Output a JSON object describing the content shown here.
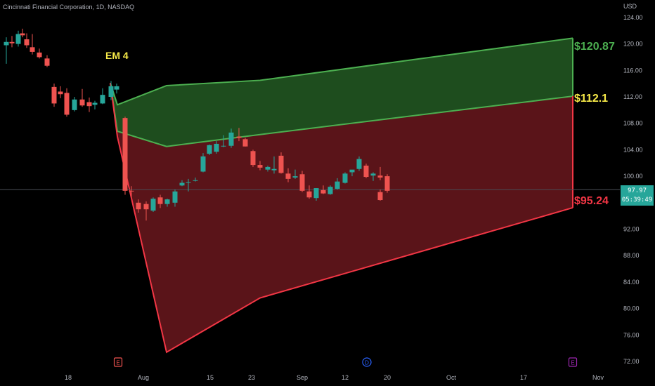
{
  "header": {
    "title": "Cincinnati Financial Corporation, 1D, NASDAQ"
  },
  "price_axis": {
    "unit": "USD"
  },
  "last_price": {
    "value": "97.97",
    "countdown": "05:39:49"
  },
  "annotations": {
    "em_label": "EM 4",
    "upper_label": "$120.87",
    "middle_label": "$112.1",
    "lower_label": "$95.24"
  },
  "colors": {
    "background": "#000000",
    "up_candle": "#26a69a",
    "down_candle": "#ef5350",
    "green_band_fill": "#1e4d1e",
    "red_band_fill": "#5a1419",
    "green_line": "#4caf50",
    "red_line": "#f23645",
    "label_yellow": "#f6e948"
  },
  "chart_data": {
    "type": "candlestick",
    "y_ticks": [
      72,
      76,
      80,
      84,
      88,
      92,
      96,
      100,
      104,
      108,
      112,
      116,
      120,
      124
    ],
    "y_tick_labels": [
      "72.00",
      "76.00",
      "80.00",
      "84.00",
      "88.00",
      "92.00",
      "96.00",
      "100.00",
      "104.00",
      "108.00",
      "112.00",
      "116.00",
      "120.00",
      "124.00"
    ],
    "ylim": [
      71,
      126
    ],
    "x_tick_labels": [
      "18",
      "Aug",
      "15",
      "23",
      "Sep",
      "12",
      "20",
      "Oct",
      "17",
      "Nov"
    ],
    "event_markers": [
      "E",
      "D",
      "E"
    ],
    "grid": false,
    "last_price_line": 97.97,
    "candles": [
      {
        "date": "Jul 11",
        "o": 119.8,
        "h": 121.0,
        "l": 117.0,
        "c": 120.3
      },
      {
        "date": "Jul 12",
        "o": 120.3,
        "h": 121.2,
        "l": 119.5,
        "c": 120.1
      },
      {
        "date": "Jul 13",
        "o": 120.0,
        "h": 122.0,
        "l": 119.6,
        "c": 121.5
      },
      {
        "date": "Jul 14",
        "o": 121.6,
        "h": 122.3,
        "l": 121.0,
        "c": 121.3
      },
      {
        "date": "Jul 15",
        "o": 120.7,
        "h": 121.6,
        "l": 119.4,
        "c": 119.8
      },
      {
        "date": "Jul 18",
        "o": 119.5,
        "h": 121.5,
        "l": 118.4,
        "c": 118.8
      },
      {
        "date": "Jul 19",
        "o": 118.7,
        "h": 119.3,
        "l": 117.8,
        "c": 118.0
      },
      {
        "date": "Jul 20",
        "o": 117.8,
        "h": 118.3,
        "l": 116.5,
        "c": 116.7
      },
      {
        "date": "Jul 21",
        "o": 113.5,
        "h": 114.0,
        "l": 110.5,
        "c": 111.0
      },
      {
        "date": "Jul 22",
        "o": 112.8,
        "h": 113.6,
        "l": 111.8,
        "c": 112.4
      },
      {
        "date": "Jul 25",
        "o": 112.6,
        "h": 113.3,
        "l": 109.0,
        "c": 109.3
      },
      {
        "date": "Jul 26",
        "o": 110.0,
        "h": 112.0,
        "l": 109.8,
        "c": 111.6
      },
      {
        "date": "Jul 27",
        "o": 111.6,
        "h": 113.2,
        "l": 110.5,
        "c": 110.7
      },
      {
        "date": "Jul 28",
        "o": 111.2,
        "h": 111.9,
        "l": 109.7,
        "c": 110.6
      },
      {
        "date": "Jul 29",
        "o": 110.8,
        "h": 111.4,
        "l": 110.1,
        "c": 111.1
      },
      {
        "date": "Aug 1",
        "o": 111.0,
        "h": 113.3,
        "l": 110.9,
        "c": 112.3
      },
      {
        "date": "Aug 2",
        "o": 112.0,
        "h": 114.4,
        "l": 111.5,
        "c": 113.6
      },
      {
        "date": "Aug 3",
        "o": 113.1,
        "h": 114.0,
        "l": 112.5,
        "c": 113.6
      },
      {
        "date": "Aug 4",
        "o": 108.8,
        "h": 109.0,
        "l": 97.2,
        "c": 97.8
      },
      {
        "date": "Aug 5",
        "o": 97.8,
        "h": 98.5,
        "l": 96.8,
        "c": 97.7
      },
      {
        "date": "Aug 8",
        "o": 96.0,
        "h": 96.5,
        "l": 94.5,
        "c": 95.0
      },
      {
        "date": "Aug 9",
        "o": 95.8,
        "h": 96.2,
        "l": 93.3,
        "c": 95.0
      },
      {
        "date": "Aug 10",
        "o": 94.8,
        "h": 96.8,
        "l": 94.6,
        "c": 96.6
      },
      {
        "date": "Aug 11",
        "o": 96.8,
        "h": 97.2,
        "l": 95.2,
        "c": 95.8
      },
      {
        "date": "Aug 12",
        "o": 95.8,
        "h": 96.6,
        "l": 95.4,
        "c": 96.5
      },
      {
        "date": "Aug 15",
        "o": 96.0,
        "h": 98.0,
        "l": 95.4,
        "c": 97.7
      },
      {
        "date": "Aug 16",
        "o": 98.6,
        "h": 99.4,
        "l": 98.5,
        "c": 99.0
      },
      {
        "date": "Aug 17",
        "o": 99.0,
        "h": 99.6,
        "l": 97.7,
        "c": 99.1
      },
      {
        "date": "Aug 18",
        "o": 99.4,
        "h": 99.8,
        "l": 99.2,
        "c": 99.4
      },
      {
        "date": "Aug 19",
        "o": 100.7,
        "h": 103.5,
        "l": 100.6,
        "c": 103.0
      },
      {
        "date": "Aug 22",
        "o": 103.4,
        "h": 104.8,
        "l": 103.2,
        "c": 104.7
      },
      {
        "date": "Aug 23",
        "o": 103.7,
        "h": 105.3,
        "l": 103.4,
        "c": 104.9
      },
      {
        "date": "Aug 24",
        "o": 104.5,
        "h": 106.2,
        "l": 104.4,
        "c": 104.6
      },
      {
        "date": "Aug 25",
        "o": 104.6,
        "h": 107.2,
        "l": 104.3,
        "c": 106.6
      },
      {
        "date": "Aug 26",
        "o": 106.0,
        "h": 107.3,
        "l": 105.3,
        "c": 105.8
      },
      {
        "date": "Aug 29",
        "o": 105.6,
        "h": 105.8,
        "l": 104.5,
        "c": 104.5
      },
      {
        "date": "Aug 30",
        "o": 103.8,
        "h": 104.0,
        "l": 101.4,
        "c": 101.7
      },
      {
        "date": "Aug 31",
        "o": 101.7,
        "h": 102.3,
        "l": 100.9,
        "c": 101.3
      },
      {
        "date": "Sep 1",
        "o": 101.0,
        "h": 101.6,
        "l": 100.7,
        "c": 101.4
      },
      {
        "date": "Sep 2",
        "o": 100.9,
        "h": 103.0,
        "l": 100.4,
        "c": 101.1
      },
      {
        "date": "Sep 6",
        "o": 103.1,
        "h": 103.6,
        "l": 100.4,
        "c": 100.5
      },
      {
        "date": "Sep 7",
        "o": 100.4,
        "h": 101.2,
        "l": 99.1,
        "c": 99.6
      },
      {
        "date": "Sep 8",
        "o": 99.8,
        "h": 101.0,
        "l": 99.6,
        "c": 100.0
      },
      {
        "date": "Sep 9",
        "o": 100.3,
        "h": 100.8,
        "l": 97.6,
        "c": 97.8
      },
      {
        "date": "Sep 12",
        "o": 97.7,
        "h": 98.6,
        "l": 96.6,
        "c": 96.8
      },
      {
        "date": "Sep 13",
        "o": 96.7,
        "h": 98.2,
        "l": 96.3,
        "c": 98.2
      },
      {
        "date": "Sep 14",
        "o": 97.9,
        "h": 98.6,
        "l": 97.3,
        "c": 97.4
      },
      {
        "date": "Sep 15",
        "o": 97.3,
        "h": 98.6,
        "l": 97.2,
        "c": 98.4
      },
      {
        "date": "Sep 16",
        "o": 98.1,
        "h": 99.7,
        "l": 98.0,
        "c": 99.2
      },
      {
        "date": "Sep 19",
        "o": 99.0,
        "h": 100.6,
        "l": 98.9,
        "c": 100.4
      },
      {
        "date": "Sep 20",
        "o": 100.6,
        "h": 100.9,
        "l": 100.0,
        "c": 101.0
      },
      {
        "date": "Sep 21",
        "o": 101.1,
        "h": 103.0,
        "l": 100.8,
        "c": 102.6
      },
      {
        "date": "Sep 22",
        "o": 101.6,
        "h": 101.9,
        "l": 99.7,
        "c": 99.9
      },
      {
        "date": "Sep 23",
        "o": 100.1,
        "h": 100.6,
        "l": 99.3,
        "c": 100.4
      },
      {
        "date": "Sep 26",
        "o": 100.1,
        "h": 101.4,
        "l": 99.4,
        "c": 99.8
      },
      {
        "date": "Sep 27",
        "o": 100.0,
        "h": 100.3,
        "l": 97.5,
        "c": 97.8
      },
      {
        "date": "Sep 28",
        "o": 97.6,
        "h": 98.0,
        "l": 96.3,
        "c": 96.4
      }
    ],
    "expected_move_band": {
      "upper": [
        {
          "x": "Aug 3",
          "y": 114.1
        },
        {
          "x": "Aug 4",
          "y": 110.8
        },
        {
          "x": "Aug 17",
          "y": 113.7
        },
        {
          "x": "Sep 5",
          "y": 114.5
        },
        {
          "x": "Oct 28",
          "y": 120.87
        }
      ],
      "middle": [
        {
          "x": "Aug 3",
          "y": 114.1
        },
        {
          "x": "Aug 4",
          "y": 106.8
        },
        {
          "x": "Aug 17",
          "y": 104.5
        },
        {
          "x": "Sep 5",
          "y": 106.3
        },
        {
          "x": "Oct 28",
          "y": 112.1
        }
      ],
      "lower": [
        {
          "x": "Aug 3",
          "y": 114.1
        },
        {
          "x": "Aug 4",
          "y": 106.0
        },
        {
          "x": "Aug 17",
          "y": 73.4
        },
        {
          "x": "Sep 5",
          "y": 81.6
        },
        {
          "x": "Oct 28",
          "y": 95.24
        }
      ]
    }
  }
}
